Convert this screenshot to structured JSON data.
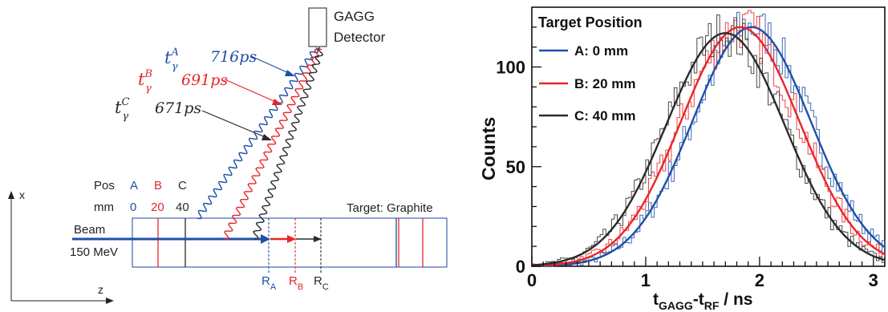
{
  "colors": {
    "A": "#1f4fa8",
    "B": "#e8262a",
    "C": "#2a2a2a"
  },
  "diagram": {
    "detector_label_1": "GAGG",
    "detector_label_2": "Detector",
    "timing": [
      {
        "pos": "A",
        "symbol": "t",
        "sub": "γ",
        "sup": "A",
        "value": "716ps"
      },
      {
        "pos": "B",
        "symbol": "t",
        "sub": "γ",
        "sup": "B",
        "value": "691ps"
      },
      {
        "pos": "C",
        "symbol": "t",
        "sub": "γ",
        "sup": "C",
        "value": "671ps"
      }
    ],
    "pos_header": "Pos",
    "mm_header": "mm",
    "positions": [
      {
        "name": "A",
        "mm": "0"
      },
      {
        "name": "B",
        "mm": "20"
      },
      {
        "name": "C",
        "mm": "40"
      }
    ],
    "target_label": "Target: Graphite",
    "beam_label_1": "Beam",
    "beam_label_2": "150 MeV",
    "axis_x": "x",
    "axis_z": "z",
    "range_labels": [
      {
        "main": "R",
        "sub": "A"
      },
      {
        "main": "R",
        "sub": "B"
      },
      {
        "main": "R",
        "sub": "C"
      }
    ]
  },
  "chart_data": {
    "type": "line",
    "title": "",
    "legend_title": "Target Position",
    "legend_placement": "top-left",
    "xlabel_main": "t",
    "xlabel_sub1": "GAGG",
    "xlabel_mid": "-t",
    "xlabel_sub2": "RF",
    "xlabel_tail": " / ns",
    "ylabel": "Counts",
    "xlim": [
      0,
      3.1
    ],
    "ylim": [
      0,
      130
    ],
    "xticks": [
      0,
      1,
      2,
      3
    ],
    "yticks": [
      0,
      50,
      100
    ],
    "grid": false,
    "series": [
      {
        "name": "A: 0 mm",
        "color": "#1f4fa8",
        "mu": 1.93,
        "sigma": 0.52,
        "amp": 120
      },
      {
        "name": "B: 20 mm",
        "color": "#e8262a",
        "mu": 1.83,
        "sigma": 0.52,
        "amp": 120
      },
      {
        "name": "C: 40 mm",
        "color": "#2a2a2a",
        "mu": 1.7,
        "sigma": 0.52,
        "amp": 117
      }
    ]
  }
}
